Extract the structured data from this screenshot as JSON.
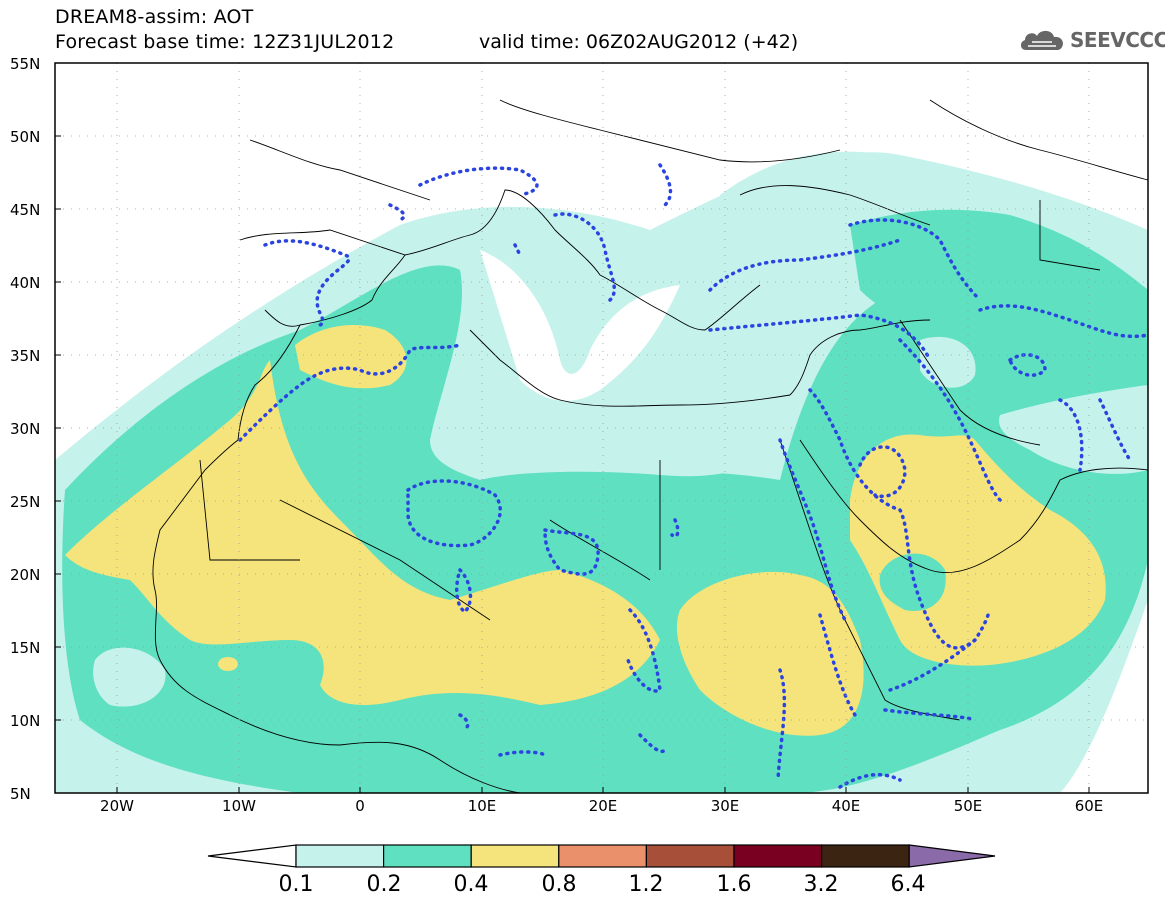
{
  "header": {
    "title": "DREAM8-assim: AOT",
    "base_time": "Forecast base time: 12Z31JUL2012",
    "valid_time": "valid time: 06Z02AUG2012 (+42)"
  },
  "logo": {
    "text": "SEEVCCC",
    "icon": "cloud-icon"
  },
  "map": {
    "latitude_labels": [
      "55N",
      "50N",
      "45N",
      "40N",
      "35N",
      "30N",
      "25N",
      "20N",
      "15N",
      "10N",
      "5N"
    ],
    "longitude_labels": [
      "20W",
      "10W",
      "0",
      "10E",
      "20E",
      "30E",
      "40E",
      "50E",
      "60E"
    ],
    "gridlines": "dotted",
    "overlay": "blue dotted contours"
  },
  "colorbar": {
    "labels": [
      "0.1",
      "0.2",
      "0.4",
      "0.8",
      "1.2",
      "1.6",
      "3.2",
      "6.4"
    ],
    "colors": [
      "#ffffff",
      "#c6f2ec",
      "#5fe0c0",
      "#f5e47c",
      "#ea906a",
      "#a84f3a",
      "#7a0022",
      "#3b2412",
      "#8a6aa8"
    ]
  }
}
